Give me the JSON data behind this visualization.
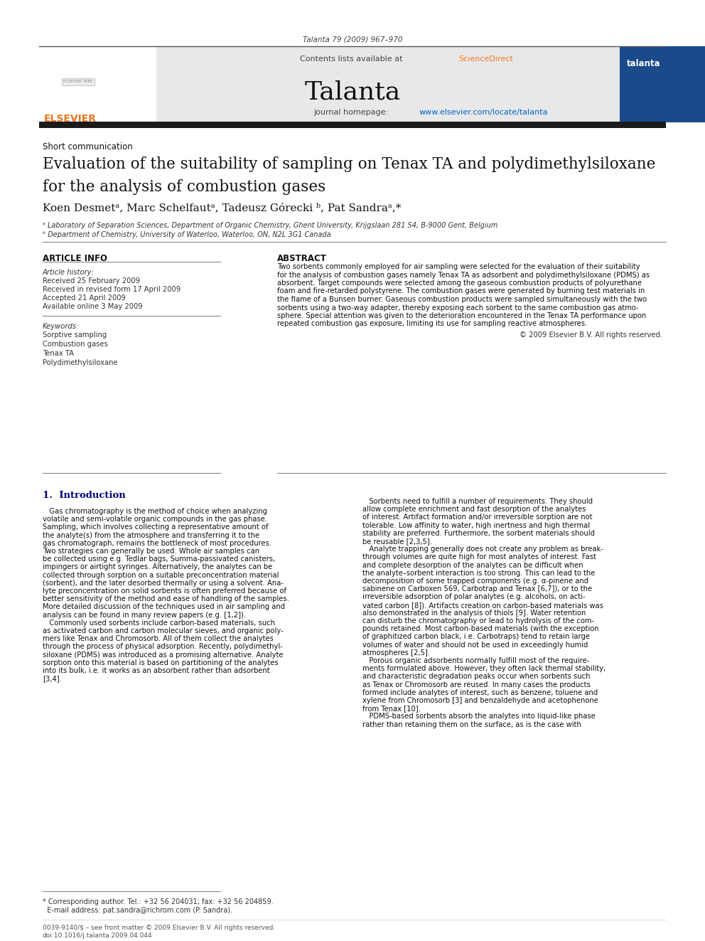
{
  "page_title": "Talanta 79 (2009) 967–970",
  "journal_name": "Talanta",
  "contents_line": "Contents lists available at ",
  "sciencedirect_text": "ScienceDirect",
  "journal_url_prefix": "journal homepage: ",
  "journal_url_link": "www.elsevier.com/locate/talanta",
  "section_label": "Short communication",
  "article_title_line1": "Evaluation of the suitability of sampling on Tenax TA and polydimethylsiloxane",
  "article_title_line2": "for the analysis of combustion gases",
  "authors": "Koen Desmetᵃ, Marc Schelfautᵃ, Tadeusz Górecki ᵇ, Pat Sandraᵃ,*",
  "affil_a": "ᵃ Laboratory of Separation Sciences, Department of Organic Chemistry, Ghent University, Krijgslaan 281 S4, B-9000 Gent, Belgium",
  "affil_b": "ᵇ Department of Chemistry, University of Waterloo, Waterloo, ON, N2L 3G1 Canada",
  "article_info_header": "ARTICLE INFO",
  "abstract_header": "ABSTRACT",
  "article_history_label": "Article history:",
  "received": "Received 25 February 2009",
  "received_revised": "Received in revised form 17 April 2009",
  "accepted": "Accepted 21 April 2009",
  "available": "Available online 3 May 2009",
  "keywords_label": "Keywords:",
  "keywords": [
    "Sorptive sampling",
    "Combustion gases",
    "Tenax TA",
    "Polydimethylsiloxane"
  ],
  "abstract_text": [
    "Two sorbents commonly employed for air sampling were selected for the evaluation of their suitability",
    "for the analysis of combustion gases namely Tenax TA as adsorbent and polydimethylsiloxane (PDMS) as",
    "absorbent. Target compounds were selected among the gaseous combustion products of polyurethane",
    "foam and fire-retarded polystyrene. The combustion gases were generated by burning test materials in",
    "the flame of a Bunsen burner. Gaseous combustion products were sampled simultaneously with the two",
    "sorbents using a two-way adapter, thereby exposing each sorbent to the same combustion gas atmo-",
    "sphere. Special attention was given to the deterioration encountered in the Tenax TA performance upon",
    "repeated combustion gas exposure, limiting its use for sampling reactive atmospheres."
  ],
  "copyright": "© 2009 Elsevier B.V. All rights reserved.",
  "intro_header": "1.  Introduction",
  "intro_left_lines": [
    "   Gas chromatography is the method of choice when analyzing",
    "volatile and semi-volatile organic compounds in the gas phase.",
    "Sampling, which involves collecting a representative amount of",
    "the analyte(s) from the atmosphere and transferring it to the",
    "gas chromatograph, remains the bottleneck of most procedures.",
    "Two strategies can generally be used. Whole air samples can",
    "be collected using e.g. Tedlar bags, Summa-passivated canisters,",
    "impingers or airtight syringes. Alternatively, the analytes can be",
    "collected through sorption on a suitable preconcentration material",
    "(sorbent), and the later desorbed thermally or using a solvent. Ana-",
    "lyte preconcentration on solid sorbents is often preferred because of",
    "better sensitivity of the method and ease of handling of the samples.",
    "More detailed discussion of the techniques used in air sampling and",
    "analysis can be found in many review papers (e.g. [1,2]).",
    "   Commonly used sorbents include carbon-based materials, such",
    "as activated carbon and carbon molecular sieves, and organic poly-",
    "mers like Tenax and Chromosorb. All of them collect the analytes",
    "through the process of physical adsorption. Recently, polydimethyl-",
    "siloxane (PDMS) was introduced as a promising alternative. Analyte",
    "sorption onto this material is based on partitioning of the analytes",
    "into its bulk, i.e. it works as an absorbent rather than adsorbent",
    "[3,4]."
  ],
  "intro_right_lines": [
    "   Sorbents need to fulfill a number of requirements. They should",
    "allow complete enrichment and fast desorption of the analytes",
    "of interest. Artifact formation and/or irreversible sorption are not",
    "tolerable. Low affinity to water, high inertness and high thermal",
    "stability are preferred. Furthermore, the sorbent materials should",
    "be reusable [2,3,5].",
    "   Analyte trapping generally does not create any problem as break-",
    "through volumes are quite high for most analytes of interest. Fast",
    "and complete desorption of the analytes can be difficult when",
    "the analyte–sorbent interaction is too strong. This can lead to the",
    "decomposition of some trapped components (e.g. α-pinene and",
    "sabinene on Carboxen 569, Carbotrap and Tenax [6,7]), or to the",
    "irreversible adsorption of polar analytes (e.g. alcohols, on acti-",
    "vated carbon [8]). Artifacts creation on carbon-based materials was",
    "also demonstrated in the analysis of thiols [9]. Water retention",
    "can disturb the chromatography or lead to hydrolysis of the com-",
    "pounds retained. Most carbon-based materials (with the exception",
    "of graphitized carbon black, i.e. Carbotraps) tend to retain large",
    "volumes of water and should not be used in exceedingly humid",
    "atmospheres [2,5].",
    "   Porous organic adsorbents normally fulfill most of the require-",
    "ments formulated above. However, they often lack thermal stability,",
    "and characteristic degradation peaks occur when sorbents such",
    "as Tenax or Chromosorb are reused. In many cases the products",
    "formed include analytes of interest, such as benzene, toluene and",
    "xylene from Chromosorb [3] and benzaldehyde and acetophenone",
    "from Tenax [10].",
    "   PDMS-based sorbents absorb the analytes into liquid-like phase",
    "rather than retaining them on the surface, as is the case with"
  ],
  "footnote_line1": "* Corresponding author. Tel.: +32 56 204031; fax: +32 56 204859.",
  "footnote_line2": "  E-mail address: pat.sandra@richrom.com (P. Sandra).",
  "footer_left": "0039-9140/$ – see front matter © 2009 Elsevier B.V. All rights reserved.",
  "footer_doi": "doi:10.1016/j.talanta.2009.04.044",
  "bg_color": "#ffffff",
  "header_bg": "#e8e8e8",
  "dark_bar_color": "#1a1a1a",
  "orange_color": "#e87722",
  "sciencedirect_color": "#f47920",
  "link_color": "#0066cc",
  "intro_color": "#000080"
}
